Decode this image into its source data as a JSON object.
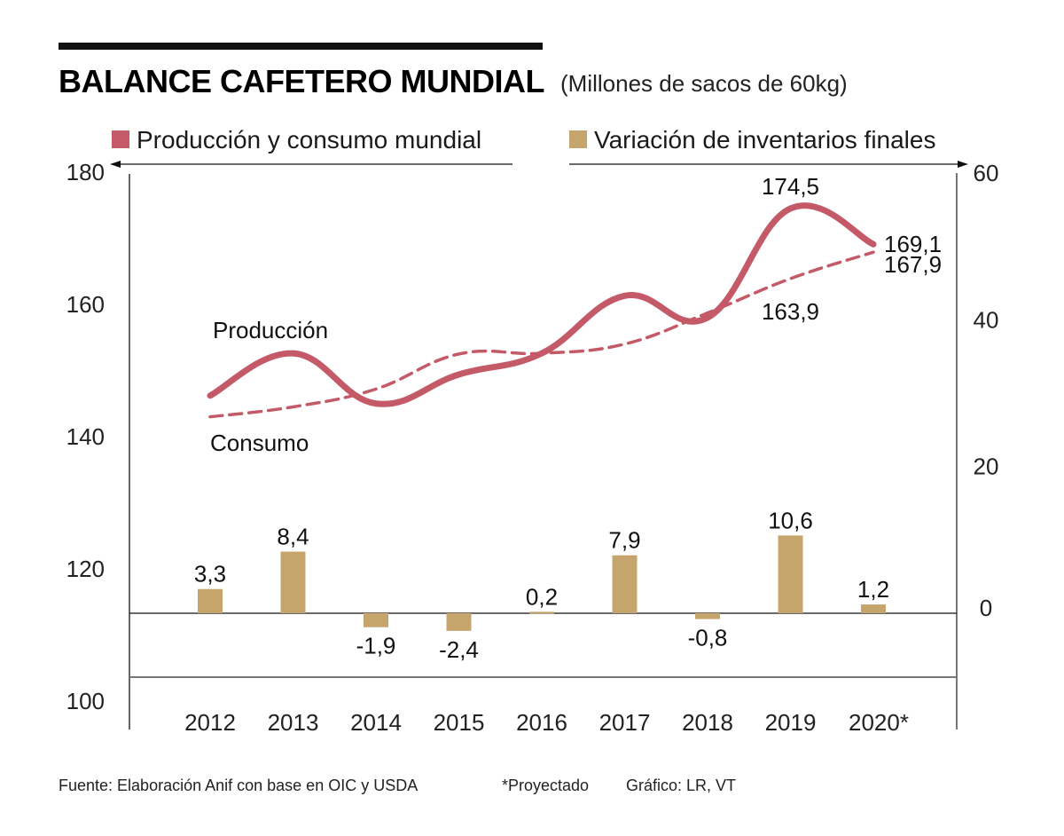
{
  "chart_data": {
    "type": "line+bar",
    "title": "BALANCE CAFETERO MUNDIAL",
    "subtitle": "(Millones de sacos de 60kg)",
    "categories": [
      "2012",
      "2013",
      "2014",
      "2015",
      "2016",
      "2017",
      "2018",
      "2019",
      "2020*"
    ],
    "legend": [
      {
        "label": "Producción y consumo mundial",
        "color": "#c45a68",
        "axis": "left"
      },
      {
        "label": "Variación de inventarios finales",
        "color": "#c6a56c",
        "axis": "right"
      }
    ],
    "legend_placement": "top",
    "left_axis": {
      "range": [
        100,
        180
      ],
      "ticks": [
        "100",
        "120",
        "140",
        "160",
        "180"
      ]
    },
    "right_axis": {
      "range": [
        -9,
        60
      ],
      "ticks": [
        "0",
        "20",
        "40",
        "60"
      ]
    },
    "grid": false,
    "series": [
      {
        "name": "Producción",
        "type": "line",
        "style": "solid",
        "axis": "left",
        "color": "#c45a68",
        "values": [
          146.2,
          152.6,
          145.0,
          149.4,
          152.6,
          161.3,
          158.0,
          174.5,
          169.1
        ],
        "labels": [
          "",
          "",
          "",
          "",
          "",
          "",
          "",
          "174,5",
          "169,1"
        ]
      },
      {
        "name": "Consumo",
        "type": "line",
        "style": "dashed",
        "axis": "left",
        "color": "#c45a68",
        "values": [
          143.0,
          144.5,
          147.2,
          152.5,
          152.6,
          154.0,
          158.7,
          163.9,
          167.9
        ],
        "labels": [
          "",
          "",
          "",
          "",
          "",
          "",
          "",
          "163,9",
          "167,9"
        ]
      },
      {
        "name": "Variación de inventarios finales",
        "type": "bar",
        "axis": "right",
        "color": "#c6a56c",
        "values": [
          3.3,
          8.4,
          -1.9,
          -2.4,
          0.2,
          7.9,
          -0.8,
          10.6,
          1.2
        ],
        "labels": [
          "3,3",
          "8,4",
          "-1,9",
          "-2,4",
          "0,2",
          "7,9",
          "-0,8",
          "10,6",
          "1,2"
        ]
      }
    ],
    "series_annotations": {
      "production": "Producción",
      "consumption": "Consumo"
    },
    "footer": {
      "source": "Fuente: Elaboración Anif con base en OIC y USDA",
      "note": "*Proyectado",
      "credit": "Gráfico: LR, VT"
    }
  }
}
